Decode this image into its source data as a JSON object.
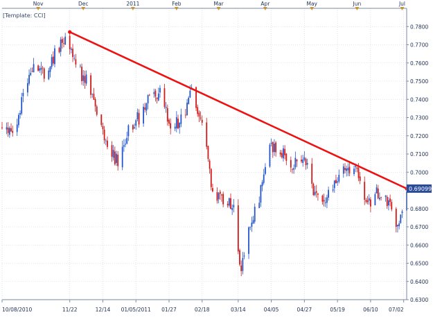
{
  "template_label": "[Template: CCI]",
  "last_price_label": "0.69099",
  "colors": {
    "up": "#2255cc",
    "down": "#d01818",
    "trendline": "#ee1111",
    "grid": "#c8d0dc",
    "frame": "#7a8aa0",
    "panel_bg": "#ffffff",
    "text": "#223355",
    "month_marker": "#e89a1a",
    "price_tag_bg": "#2a4a9a",
    "price_tag_text": "#ffffff"
  },
  "month_labels": [
    {
      "label": "Nov",
      "date": "2010-11-01"
    },
    {
      "label": "Dec",
      "date": "2010-12-01"
    },
    {
      "label": "2011",
      "date": "2011-01-03"
    },
    {
      "label": "Feb",
      "date": "2011-02-01"
    },
    {
      "label": "Mar",
      "date": "2011-03-01"
    },
    {
      "label": "Apr",
      "date": "2011-04-01"
    },
    {
      "label": "May",
      "date": "2011-05-02"
    },
    {
      "label": "Jun",
      "date": "2011-06-01"
    },
    {
      "label": "Jul",
      "date": "2011-07-01"
    }
  ],
  "chart_data": {
    "type": "candlestick",
    "title": "",
    "xlabel": "",
    "ylabel": "",
    "x_range": [
      "2010-10-08",
      "2011-07-04"
    ],
    "ylim": [
      0.63,
      0.79
    ],
    "y_ticks": [
      "0.7800",
      "0.7700",
      "0.7600",
      "0.7500",
      "0.7400",
      "0.7300",
      "0.7200",
      "0.7100",
      "0.7000",
      "0.6900",
      "0.6800",
      "0.6700",
      "0.6600",
      "0.6500",
      "0.6400",
      "0.6300"
    ],
    "x_tick_labels": [
      {
        "label": "10/08/2010",
        "date": "2010-10-08"
      },
      {
        "label": "11/22",
        "date": "2010-11-22"
      },
      {
        "label": "12/14",
        "date": "2010-12-14"
      },
      {
        "label": "01/05/2011",
        "date": "2011-01-05"
      },
      {
        "label": "01/27",
        "date": "2011-01-27"
      },
      {
        "label": "02/18",
        "date": "2011-02-18"
      },
      {
        "label": "03/14",
        "date": "2011-03-14"
      },
      {
        "label": "04/05",
        "date": "2011-04-05"
      },
      {
        "label": "04/27",
        "date": "2011-04-27"
      },
      {
        "label": "05/19",
        "date": "2011-05-19"
      },
      {
        "label": "06/10",
        "date": "2011-06-10"
      },
      {
        "label": "07/02",
        "date": "2011-07-02"
      }
    ],
    "anchors": [
      {
        "date": "2010-10-08",
        "price": 0.725
      },
      {
        "date": "2010-10-15",
        "price": 0.722
      },
      {
        "date": "2010-10-22",
        "price": 0.74
      },
      {
        "date": "2010-10-29",
        "price": 0.762
      },
      {
        "date": "2010-11-05",
        "price": 0.755
      },
      {
        "date": "2010-11-12",
        "price": 0.765
      },
      {
        "date": "2010-11-19",
        "price": 0.772
      },
      {
        "date": "2010-11-26",
        "price": 0.758
      },
      {
        "date": "2010-12-03",
        "price": 0.75
      },
      {
        "date": "2010-12-10",
        "price": 0.735
      },
      {
        "date": "2010-12-17",
        "price": 0.715
      },
      {
        "date": "2010-12-24",
        "price": 0.705
      },
      {
        "date": "2010-12-31",
        "price": 0.725
      },
      {
        "date": "2011-01-07",
        "price": 0.73
      },
      {
        "date": "2011-01-14",
        "price": 0.74
      },
      {
        "date": "2011-01-21",
        "price": 0.745
      },
      {
        "date": "2011-01-28",
        "price": 0.725
      },
      {
        "date": "2011-02-04",
        "price": 0.728
      },
      {
        "date": "2011-02-11",
        "price": 0.744
      },
      {
        "date": "2011-02-18",
        "price": 0.725
      },
      {
        "date": "2011-02-25",
        "price": 0.69
      },
      {
        "date": "2011-03-04",
        "price": 0.685
      },
      {
        "date": "2011-03-11",
        "price": 0.68
      },
      {
        "date": "2011-03-16",
        "price": 0.645
      },
      {
        "date": "2011-03-22",
        "price": 0.67
      },
      {
        "date": "2011-03-29",
        "price": 0.69
      },
      {
        "date": "2011-04-05",
        "price": 0.715
      },
      {
        "date": "2011-04-12",
        "price": 0.71
      },
      {
        "date": "2011-04-19",
        "price": 0.705
      },
      {
        "date": "2011-04-26",
        "price": 0.71
      },
      {
        "date": "2011-05-03",
        "price": 0.69
      },
      {
        "date": "2011-05-10",
        "price": 0.68
      },
      {
        "date": "2011-05-17",
        "price": 0.695
      },
      {
        "date": "2011-05-24",
        "price": 0.7
      },
      {
        "date": "2011-05-31",
        "price": 0.702
      },
      {
        "date": "2011-06-07",
        "price": 0.68
      },
      {
        "date": "2011-06-14",
        "price": 0.688
      },
      {
        "date": "2011-06-21",
        "price": 0.685
      },
      {
        "date": "2011-06-28",
        "price": 0.672
      },
      {
        "date": "2011-07-04",
        "price": 0.691
      }
    ],
    "trendline": {
      "start": {
        "date": "2010-11-22",
        "price": 0.777
      },
      "end": {
        "date": "2011-07-04",
        "price": 0.691
      }
    },
    "last_price": 0.69099
  }
}
